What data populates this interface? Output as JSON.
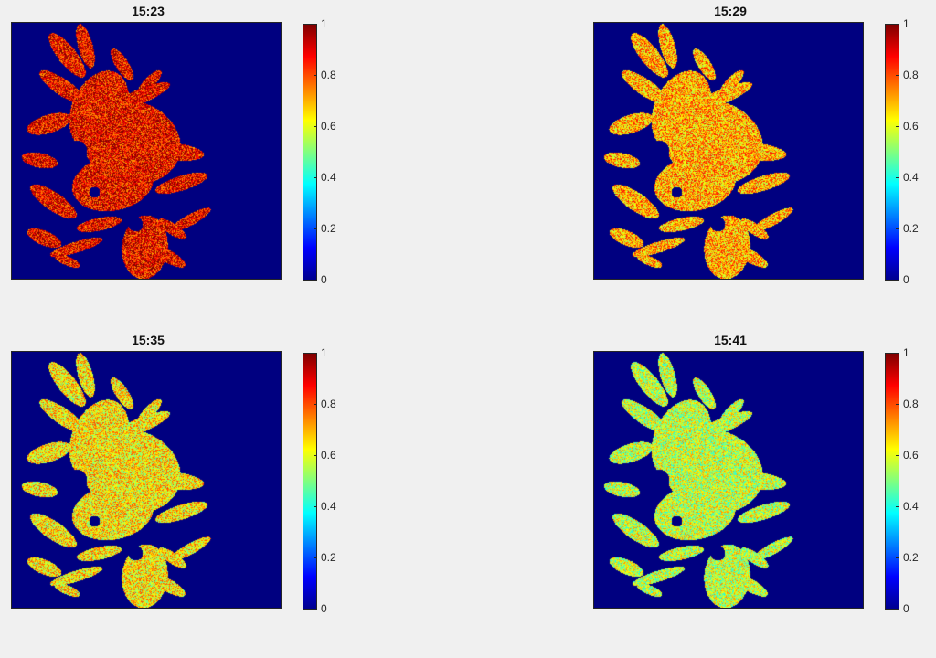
{
  "chart_data": [
    {
      "type": "heatmap",
      "title": "15:23",
      "colormap": "jet",
      "clim": [
        0,
        1
      ],
      "colorbar_ticks": [
        "0",
        "0.2",
        "0.4",
        "0.6",
        "0.8",
        "1"
      ],
      "typical_value": 0.88,
      "background_value": 0
    },
    {
      "type": "heatmap",
      "title": "15:29",
      "colormap": "jet",
      "clim": [
        0,
        1
      ],
      "colorbar_ticks": [
        "0",
        "0.2",
        "0.4",
        "0.6",
        "0.8",
        "1"
      ],
      "typical_value": 0.7,
      "background_value": 0
    },
    {
      "type": "heatmap",
      "title": "15:35",
      "colormap": "jet",
      "clim": [
        0,
        1
      ],
      "colorbar_ticks": [
        "0",
        "0.2",
        "0.4",
        "0.6",
        "0.8",
        "1"
      ],
      "typical_value": 0.64,
      "background_value": 0
    },
    {
      "type": "heatmap",
      "title": "15:41",
      "colormap": "jet",
      "clim": [
        0,
        1
      ],
      "colorbar_ticks": [
        "0",
        "0.2",
        "0.4",
        "0.6",
        "0.8",
        "1"
      ],
      "typical_value": 0.57,
      "background_value": 0
    }
  ]
}
